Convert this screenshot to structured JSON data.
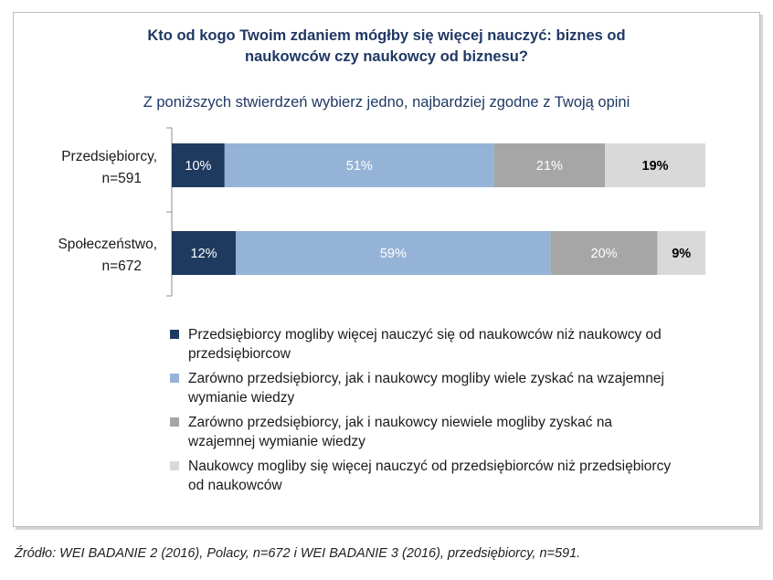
{
  "title_line1": "Kto od kogo Twoim zdaniem mógłby się więcej nauczyć: biznes od",
  "title_line2": "naukowców czy naukowcy od biznesu?",
  "subtitle": "Z poniższych stwierdzeń wybierz jedno, najbardziej zgodne z Twoją opini",
  "source": "Źródło: WEI BADANIE 2 (2016), Polacy, n=672 i WEI BADANIE 3 (2016), przedsiębiorcy, n=591.",
  "colors": {
    "s1": "#1f3a5f",
    "s2": "#95b3d7",
    "s3": "#a6a6a6",
    "s4": "#d9d9d9"
  },
  "chart_data": {
    "type": "bar",
    "orientation": "horizontal",
    "stacked": "100%",
    "categories": [
      {
        "line1": "Przedsiębiorcy,",
        "line2": "n=591"
      },
      {
        "line1": "Społeczeństwo,",
        "line2": "n=672"
      }
    ],
    "series": [
      {
        "name": "Przedsiębiorcy mogliby więcej nauczyć się od naukowców niż naukowcy od przedsiębiorcow",
        "legend_lines": [
          "Przedsiębiorcy mogliby więcej nauczyć się od naukowców niż naukowcy od",
          "przedsiębiorcow"
        ],
        "values": [
          10,
          12
        ],
        "labels": [
          "10%",
          "12%"
        ]
      },
      {
        "name": "Zarówno przedsiębiorcy, jak i naukowcy mogliby wiele zyskać na wzajemnej wymianie wiedzy",
        "legend_lines": [
          "Zarówno przedsiębiorcy, jak i naukowcy mogliby wiele zyskać na wzajemnej",
          "wymianie wiedzy"
        ],
        "values": [
          51,
          59
        ],
        "labels": [
          "51%",
          "59%"
        ]
      },
      {
        "name": "Zarówno przedsiębiorcy, jak i naukowcy niewiele mogliby zyskać na wzajemnej wymianie wiedzy",
        "legend_lines": [
          "Zarówno przedsiębiorcy, jak i naukowcy niewiele mogliby zyskać na",
          "wzajemnej wymianie wiedzy"
        ],
        "values": [
          21,
          20
        ],
        "labels": [
          "21%",
          "20%"
        ]
      },
      {
        "name": "Naukowcy mogliby się więcej nauczyć od przedsiębiorców niż przedsiębiorcy od naukowców",
        "legend_lines": [
          "Naukowcy mogliby się więcej nauczyć od przedsiębiorców niż przedsiębiorcy",
          "od naukowców"
        ],
        "values": [
          19,
          9
        ],
        "labels": [
          "19%",
          "9%"
        ]
      }
    ],
    "legend_position": "bottom"
  }
}
